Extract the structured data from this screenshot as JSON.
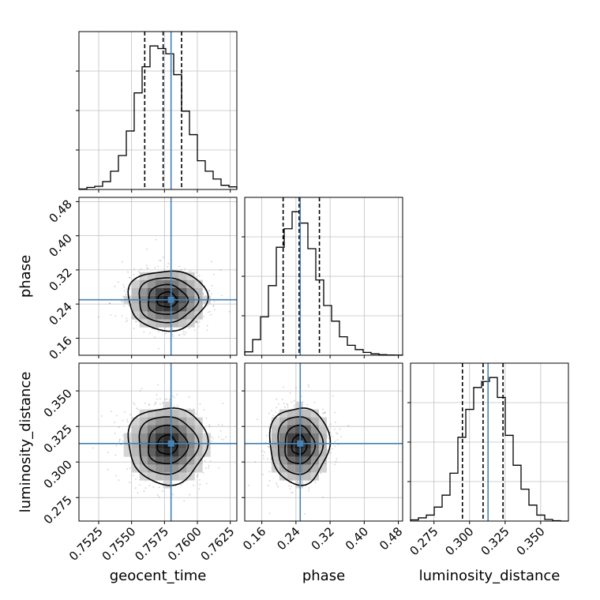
{
  "chart_data": {
    "type": "corner",
    "parameters": [
      "geocent_time",
      "phase",
      "luminosity_distance"
    ],
    "truth": {
      "geocent_time": 0.758,
      "phase": 0.25,
      "luminosity_distance": 0.313
    },
    "quantiles": {
      "geocent_time": [
        0.756,
        0.7574,
        0.7588
      ],
      "phase": [
        0.21,
        0.2475,
        0.295
      ],
      "luminosity_distance": [
        0.295,
        0.3095,
        0.3235
      ]
    },
    "ranges": {
      "geocent_time": [
        0.751,
        0.763
      ],
      "phase": [
        0.12,
        0.49
      ],
      "luminosity_distance": [
        0.2585,
        0.3695
      ]
    },
    "ticks": {
      "geocent_time": [
        "0.7525",
        "0.7550",
        "0.7575",
        "0.7600",
        "0.7625"
      ],
      "phase": [
        "0.16",
        "0.24",
        "0.32",
        "0.40",
        "0.48"
      ],
      "luminosity_distance": [
        "0.275",
        "0.300",
        "0.325",
        "0.350"
      ]
    },
    "histograms": {
      "geocent_time": [
        0.1,
        0.4,
        0.6,
        1.5,
        3.5,
        6.5,
        11.2,
        18.5,
        23.5,
        27.5,
        27.0,
        26.0,
        22.0,
        15.0,
        10.5,
        5.5,
        3.5,
        2.0,
        0.8,
        0.5
      ],
      "phase": [
        1.2,
        5.5,
        13.5,
        24.5,
        38.0,
        44.5,
        50.5,
        46.5,
        37.5,
        26.5,
        17.5,
        12.0,
        6.5,
        3.5,
        2.0,
        1.0,
        0.5,
        0.2,
        0.1,
        0.05
      ],
      "luminosity_distance": [
        0.3,
        0.8,
        1.5,
        3.5,
        6.5,
        12.0,
        21.0,
        28.0,
        33.5,
        35.0,
        36.0,
        31.0,
        21.5,
        14.0,
        8.0,
        4.0,
        1.5,
        0.4,
        0.1,
        0.0
      ]
    },
    "sigma": {
      "geocent_time": 0.0015,
      "phase": 0.035,
      "luminosity_distance": 0.0135
    },
    "colors": {
      "truth": "#4682b4",
      "contour": "#000000",
      "grid": "#c0c0c0"
    },
    "grid": true
  }
}
